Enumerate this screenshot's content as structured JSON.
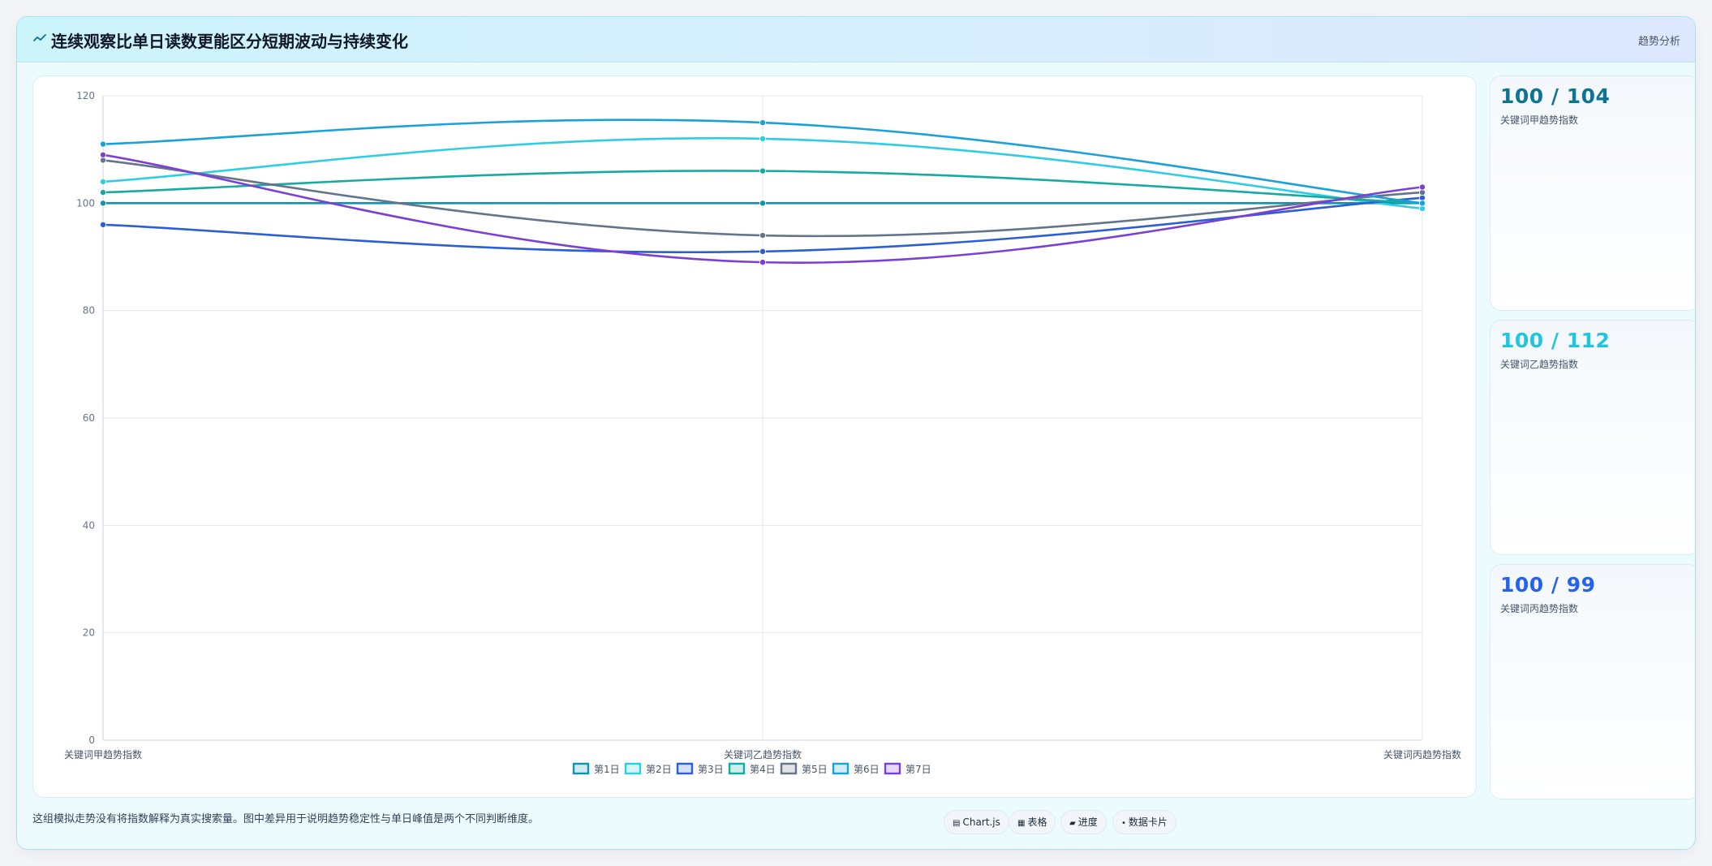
{
  "header": {
    "title": "连续观察比单日读数更能区分短期波动与持续变化",
    "icon": "trend-line-icon",
    "tag": "趋势分析"
  },
  "chart_data": {
    "type": "line",
    "categories": [
      "关键词甲趋势指数",
      "关键词乙趋势指数",
      "关键词丙趋势指数"
    ],
    "ylim": [
      0,
      120
    ],
    "yticks": [
      0,
      20,
      40,
      60,
      80,
      100,
      120
    ],
    "grid": true,
    "legend_position": "bottom",
    "series": [
      {
        "name": "第1日",
        "values": [
          100,
          100,
          100
        ],
        "color": "#0e93b0"
      },
      {
        "name": "第2日",
        "values": [
          104,
          112,
          99
        ],
        "color": "#2ecde3"
      },
      {
        "name": "第3日",
        "values": [
          96,
          91,
          101
        ],
        "color": "#2b5fd6"
      },
      {
        "name": "第4日",
        "values": [
          102,
          106,
          100
        ],
        "color": "#16aaa0"
      },
      {
        "name": "第5日",
        "values": [
          108,
          94,
          102
        ],
        "color": "#64748b"
      },
      {
        "name": "第6日",
        "values": [
          111,
          115,
          100
        ],
        "color": "#1aa2d8"
      },
      {
        "name": "第7日",
        "values": [
          109,
          89,
          103
        ],
        "color": "#7b3fd6"
      }
    ]
  },
  "cards": [
    {
      "value": "100 / 104",
      "label": "关键词甲趋势指数",
      "color": "#0e7490"
    },
    {
      "value": "100 / 112",
      "label": "关键词乙趋势指数",
      "color": "#22c5dc"
    },
    {
      "value": "100 / 99",
      "label": "关键词丙趋势指数",
      "color": "#2563eb"
    }
  ],
  "footnote": "这组模拟走势没有将指数解释为真实搜索量。图中差异用于说明趋势稳定性与单日峰值是两个不同判断维度。",
  "chips": [
    {
      "icon": "chart-icon",
      "glyph": "▤",
      "label": "Chart.js"
    },
    {
      "icon": "table-icon",
      "glyph": "▦",
      "label": "表格"
    },
    {
      "icon": "progress-icon",
      "glyph": "▰",
      "label": "进度"
    },
    {
      "icon": "card-icon",
      "glyph": "•",
      "label": "数据卡片"
    }
  ]
}
